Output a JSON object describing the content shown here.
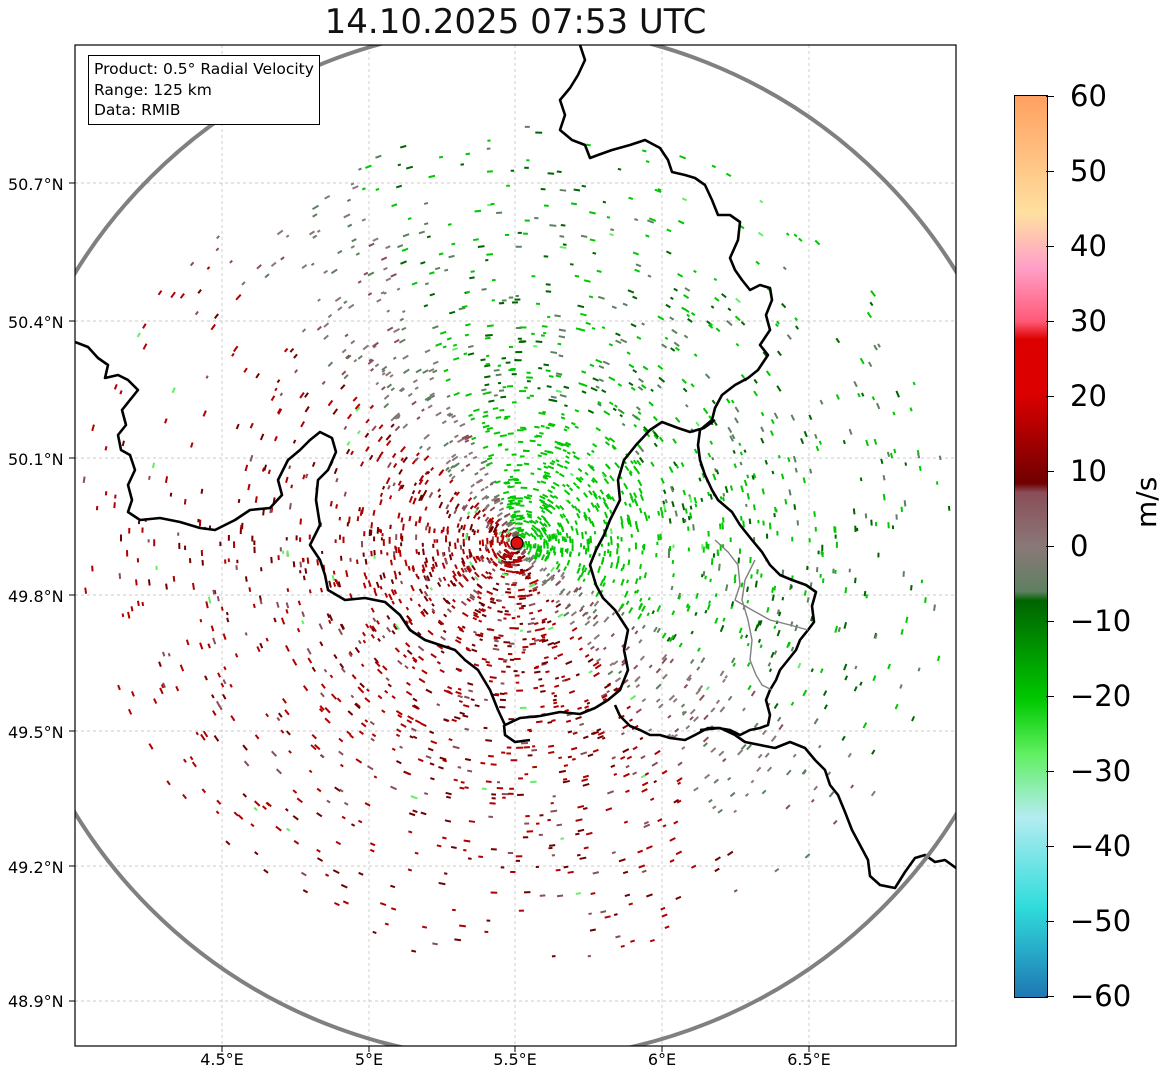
{
  "title": "14.10.2025 07:53 UTC",
  "info": {
    "product": "Product: 0.5° Radial Velocity",
    "range": "Range: 125 km",
    "data": "Data: RMIB"
  },
  "axes": {
    "lat_labels": [
      "50.7°N",
      "50.4°N",
      "50.1°N",
      "49.8°N",
      "49.5°N",
      "49.2°N",
      "48.9°N"
    ],
    "lon_labels": [
      "4.5°E",
      "5°E",
      "5.5°E",
      "6°E",
      "6.5°E"
    ]
  },
  "colorbar": {
    "label": "m/s",
    "ticks": [
      "60",
      "50",
      "40",
      "30",
      "20",
      "10",
      "0",
      "−10",
      "−20",
      "−30",
      "−40",
      "−50",
      "−60"
    ],
    "colors": {
      "negative_fast": "#1f77b4",
      "cyan": "#30dcdc",
      "light_cyan": "#b4ecf0",
      "green_light": "#60f060",
      "green": "#00c800",
      "green_dark": "#006400",
      "zero_green": "#5e8060",
      "zero_grey": "#8a7878",
      "zero_mauve": "#8a4e58",
      "red_dark": "#700000",
      "red": "#dc0000",
      "pink": "#ff5a78",
      "light_pink": "#ffa0c8",
      "peach": "#ffe0a0",
      "orange": "#ffa060"
    }
  },
  "radar": {
    "site_marker": "radar-site",
    "range_ring": "125 km"
  }
}
